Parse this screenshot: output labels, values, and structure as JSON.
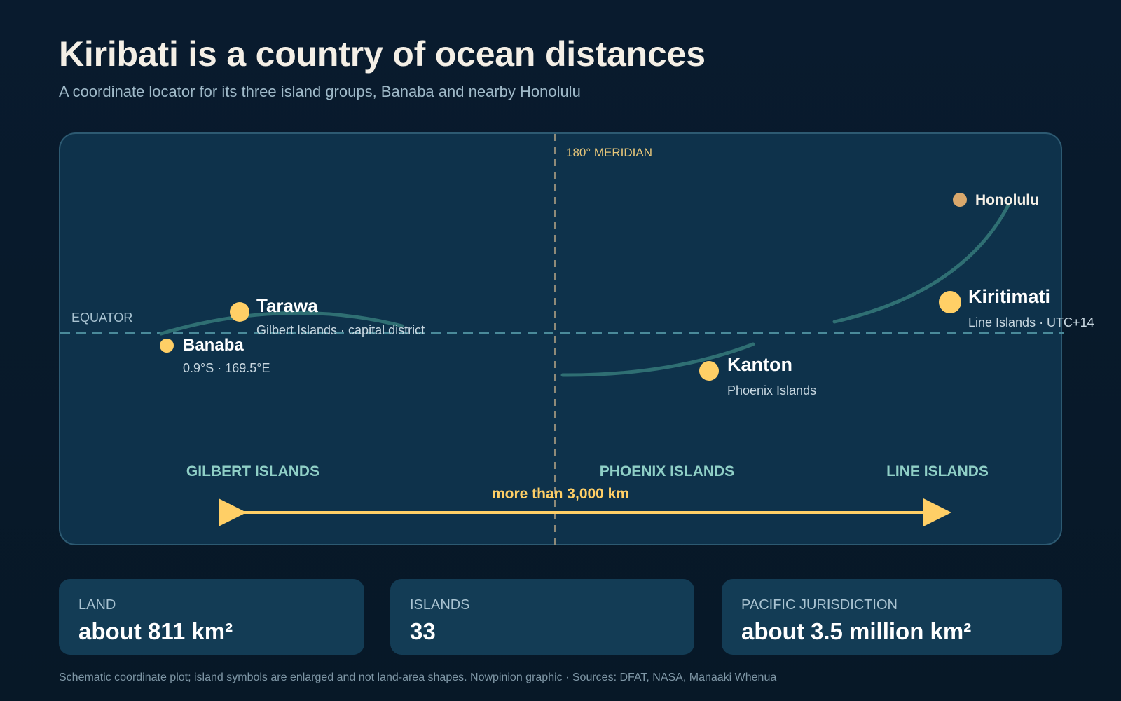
{
  "header": {
    "title": "Kiribati is a country of ocean distances",
    "subtitle": "A coordinate locator for its three island groups, Banaba and nearby Honolulu"
  },
  "map": {
    "meridian_label": "180° MERIDIAN",
    "equator_label": "EQUATOR",
    "places": {
      "tarawa": {
        "name": "Tarawa",
        "note": "Gilbert Islands · capital district"
      },
      "banaba": {
        "name": "Banaba",
        "note": "0.9°S · 169.5°E"
      },
      "kanton": {
        "name": "Kanton",
        "note": "Phoenix Islands"
      },
      "kiritimati": {
        "name": "Kiritimati",
        "note": "Line Islands · UTC+14"
      },
      "honolulu": {
        "name": "Honolulu"
      }
    },
    "groups": {
      "gilbert": "GILBERT ISLANDS",
      "phoenix": "PHOENIX ISLANDS",
      "line": "LINE ISLANDS"
    },
    "span_label": "more than 3,000 km"
  },
  "stats": [
    {
      "label": "LAND",
      "value": "about 811 km²"
    },
    {
      "label": "ISLANDS",
      "value": "33"
    },
    {
      "label": "PACIFIC JURISDICTION",
      "value": "about 3.5 million km²"
    }
  ],
  "footnote": "Schematic coordinate plot; island symbols are enlarged and not land-area shapes. Nowpinion graphic · Sources: DFAT, NASA, Manaaki Whenua",
  "colors": {
    "background": "#081a2b",
    "panel": "#0e324b",
    "island": "#ffcf66",
    "honolulu": "#d9a86c",
    "chain": "#2f6f73",
    "group_label": "#8fcfc6",
    "arrow": "#ffcf66"
  }
}
